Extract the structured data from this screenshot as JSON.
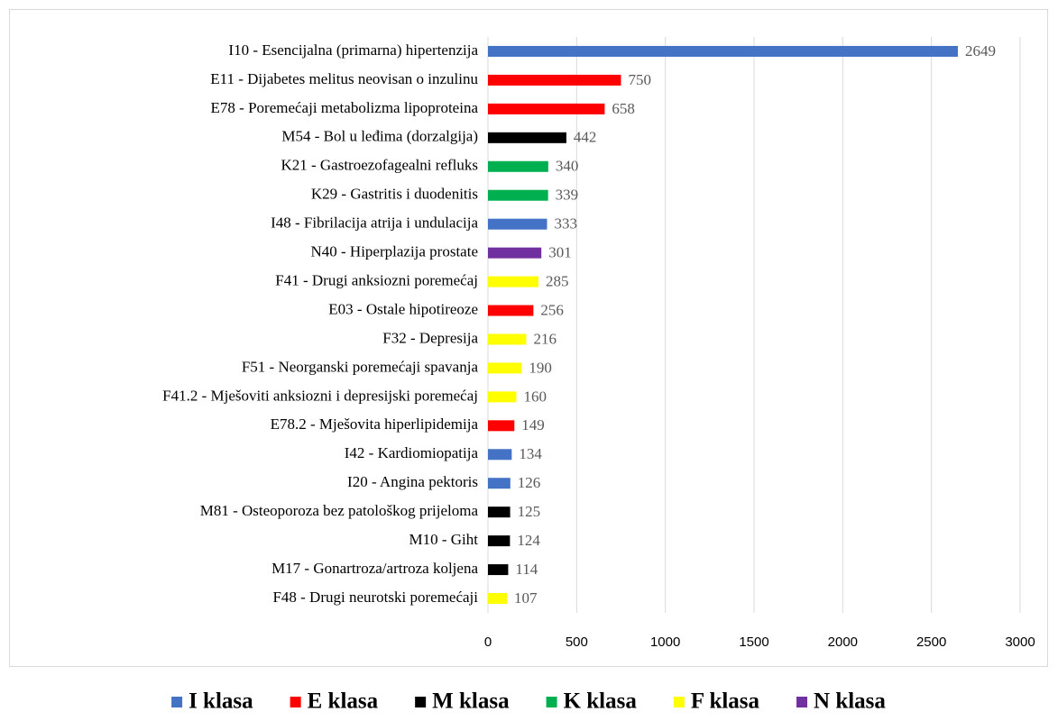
{
  "chart_data": {
    "type": "bar",
    "orientation": "horizontal",
    "categories": [
      "I10 - Esencijalna (primarna) hipertenzija",
      "E11 - Dijabetes melitus neovisan o inzulinu",
      "E78 - Poremećaji metabolizma lipoproteina",
      "M54 - Bol u leđima (dorzalgija)",
      "K21 - Gastroezofagealni refluks",
      "K29 - Gastritis i duodenitis",
      "I48 - Fibrilacija atrija i undulacija",
      "N40 - Hiperplazija prostate",
      "F41 - Drugi anksiozni poremećaj",
      "E03 - Ostale hipotireoze",
      "F32 - Depresija",
      "F51 - Neorganski poremećaji spavanja",
      "F41.2 - Mješoviti anksiozni i depresijski poremećaj",
      "E78.2 - Mješovita hiperlipidemija",
      "I42 - Kardiomiopatija",
      "I20 - Angina pektoris",
      "M81 - Osteoporoza bez patološkog prijeloma",
      "M10 - Giht",
      "M17 - Gonartroza/artroza koljena",
      "F48 - Drugi neurotski poremećaji"
    ],
    "series": [
      {
        "name": "I klasa",
        "color": "#4472c4",
        "values": [
          2649,
          null,
          null,
          null,
          null,
          null,
          333,
          null,
          null,
          null,
          null,
          null,
          null,
          null,
          134,
          126,
          null,
          null,
          null,
          null
        ]
      },
      {
        "name": "E klasa",
        "color": "#ff0000",
        "values": [
          null,
          750,
          658,
          null,
          null,
          null,
          null,
          null,
          null,
          256,
          null,
          null,
          null,
          149,
          null,
          null,
          null,
          null,
          null,
          null
        ]
      },
      {
        "name": "M klasa",
        "color": "#000000",
        "values": [
          null,
          null,
          null,
          442,
          null,
          null,
          null,
          null,
          null,
          null,
          null,
          null,
          null,
          null,
          null,
          null,
          125,
          124,
          114,
          null
        ]
      },
      {
        "name": "K klasa",
        "color": "#00b050",
        "values": [
          null,
          null,
          null,
          null,
          340,
          339,
          null,
          null,
          null,
          null,
          null,
          null,
          null,
          null,
          null,
          null,
          null,
          null,
          null,
          null
        ]
      },
      {
        "name": "F klasa",
        "color": "#ffff00",
        "values": [
          null,
          null,
          null,
          null,
          null,
          null,
          null,
          null,
          285,
          null,
          216,
          190,
          160,
          null,
          null,
          null,
          null,
          null,
          null,
          107
        ]
      },
      {
        "name": "N klasa",
        "color": "#7030a0",
        "values": [
          null,
          null,
          null,
          null,
          null,
          null,
          null,
          301,
          null,
          null,
          null,
          null,
          null,
          null,
          null,
          null,
          null,
          null,
          null,
          null
        ]
      }
    ],
    "xlim": [
      0,
      3000
    ],
    "xticks": [
      0,
      500,
      1000,
      1500,
      2000,
      2500,
      3000
    ],
    "grid": true,
    "legend": "bottom"
  }
}
